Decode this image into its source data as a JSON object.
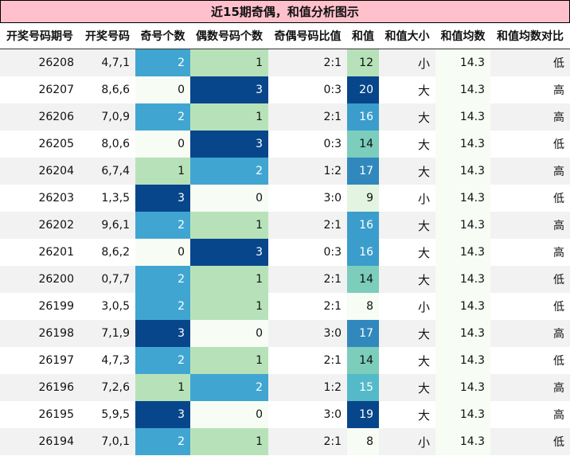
{
  "title": "近15期奇偶，和值分析图示",
  "columns": [
    "开奖号码期号",
    "开奖号码",
    "奇号个数",
    "偶数号码个数",
    "奇偶号码比值",
    "和值",
    "和值大小",
    "和值均数",
    "和值均数对比"
  ],
  "palette": {
    "count_0": "#f7fcf5",
    "count_1": "#b7e2b9",
    "count_2": "#40a6d1",
    "count_3": "#08468b",
    "sum_8": "#f7fcf5",
    "sum_9": "#e3f4e1",
    "sum_12": "#b7e2b9",
    "sum_14": "#7ccdbb",
    "sum_15": "#54b9c9",
    "sum_16": "#3b9dcc",
    "sum_17": "#3188bd",
    "sum_19": "#08468b",
    "sum_20": "#08468b",
    "avg_bg": "#f7fcf5",
    "title_bg": "#ffc0cb"
  },
  "rows": [
    {
      "issue": "26208",
      "numbers": "4,7,1",
      "odd": "2",
      "even": "1",
      "ratio": "2:1",
      "sum": "12",
      "size": "小",
      "avg": "14.3",
      "cmp": "低"
    },
    {
      "issue": "26207",
      "numbers": "8,6,6",
      "odd": "0",
      "even": "3",
      "ratio": "0:3",
      "sum": "20",
      "size": "大",
      "avg": "14.3",
      "cmp": "高"
    },
    {
      "issue": "26206",
      "numbers": "7,0,9",
      "odd": "2",
      "even": "1",
      "ratio": "2:1",
      "sum": "16",
      "size": "大",
      "avg": "14.3",
      "cmp": "高"
    },
    {
      "issue": "26205",
      "numbers": "8,0,6",
      "odd": "0",
      "even": "3",
      "ratio": "0:3",
      "sum": "14",
      "size": "大",
      "avg": "14.3",
      "cmp": "低"
    },
    {
      "issue": "26204",
      "numbers": "6,7,4",
      "odd": "1",
      "even": "2",
      "ratio": "1:2",
      "sum": "17",
      "size": "大",
      "avg": "14.3",
      "cmp": "高"
    },
    {
      "issue": "26203",
      "numbers": "1,3,5",
      "odd": "3",
      "even": "0",
      "ratio": "3:0",
      "sum": "9",
      "size": "小",
      "avg": "14.3",
      "cmp": "低"
    },
    {
      "issue": "26202",
      "numbers": "9,6,1",
      "odd": "2",
      "even": "1",
      "ratio": "2:1",
      "sum": "16",
      "size": "大",
      "avg": "14.3",
      "cmp": "高"
    },
    {
      "issue": "26201",
      "numbers": "8,6,2",
      "odd": "0",
      "even": "3",
      "ratio": "0:3",
      "sum": "16",
      "size": "大",
      "avg": "14.3",
      "cmp": "高"
    },
    {
      "issue": "26200",
      "numbers": "0,7,7",
      "odd": "2",
      "even": "1",
      "ratio": "2:1",
      "sum": "14",
      "size": "大",
      "avg": "14.3",
      "cmp": "低"
    },
    {
      "issue": "26199",
      "numbers": "3,0,5",
      "odd": "2",
      "even": "1",
      "ratio": "2:1",
      "sum": "8",
      "size": "小",
      "avg": "14.3",
      "cmp": "低"
    },
    {
      "issue": "26198",
      "numbers": "7,1,9",
      "odd": "3",
      "even": "0",
      "ratio": "3:0",
      "sum": "17",
      "size": "大",
      "avg": "14.3",
      "cmp": "高"
    },
    {
      "issue": "26197",
      "numbers": "4,7,3",
      "odd": "2",
      "even": "1",
      "ratio": "2:1",
      "sum": "14",
      "size": "大",
      "avg": "14.3",
      "cmp": "低"
    },
    {
      "issue": "26196",
      "numbers": "7,2,6",
      "odd": "1",
      "even": "2",
      "ratio": "1:2",
      "sum": "15",
      "size": "大",
      "avg": "14.3",
      "cmp": "高"
    },
    {
      "issue": "26195",
      "numbers": "5,9,5",
      "odd": "3",
      "even": "0",
      "ratio": "3:0",
      "sum": "19",
      "size": "大",
      "avg": "14.3",
      "cmp": "高"
    },
    {
      "issue": "26194",
      "numbers": "7,0,1",
      "odd": "2",
      "even": "1",
      "ratio": "2:1",
      "sum": "8",
      "size": "小",
      "avg": "14.3",
      "cmp": "低"
    }
  ]
}
